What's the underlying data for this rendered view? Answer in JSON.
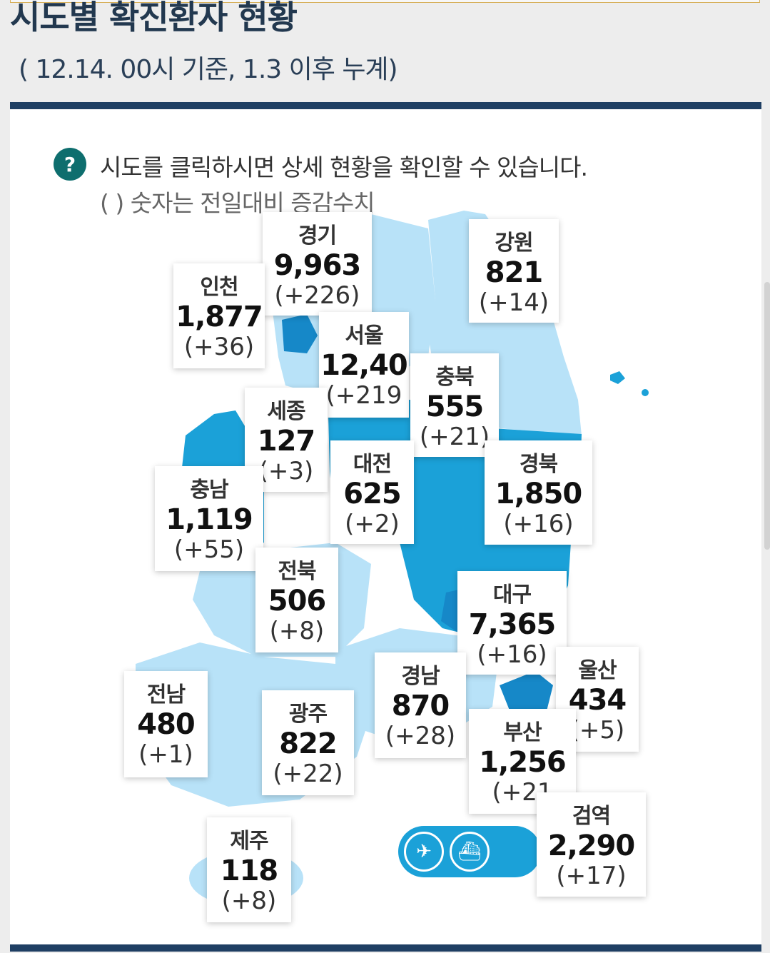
{
  "header": {
    "title": "시도별 확진환자 현황",
    "subtitle": "( 12.14. 00시 기준, 1.3 이후 누계)"
  },
  "help": {
    "icon": "question-icon",
    "icon_glyph": "?",
    "text": "시도를 클릭하시면 상세 현황을 확인할 수 있습니다.",
    "note": "( ) 숫자는 전일대비 증감수치"
  },
  "colors": {
    "header_bar": "#1f3f63",
    "map_light": "#b8e2f8",
    "map_medium": "#1ba1d8",
    "map_dark": "#1688c8",
    "help_icon": "#0e6e6e"
  },
  "regions": {
    "gyeonggi": {
      "name": "경기",
      "total": "9,963",
      "delta": "(+226)"
    },
    "gangwon": {
      "name": "강원",
      "total": "821",
      "delta": "(+14)"
    },
    "incheon": {
      "name": "인천",
      "total": "1,877",
      "delta": "(+36)"
    },
    "seoul": {
      "name": "서울",
      "total": "12,40",
      "delta": "(+219"
    },
    "chungbuk": {
      "name": "충북",
      "total": "555",
      "delta": "(+21)"
    },
    "sejong": {
      "name": "세종",
      "total": "127",
      "delta": "(+3)"
    },
    "daejeon": {
      "name": "대전",
      "total": "625",
      "delta": "(+2)"
    },
    "gyeongbuk": {
      "name": "경북",
      "total": "1,850",
      "delta": "(+16)"
    },
    "chungnam": {
      "name": "충남",
      "total": "1,119",
      "delta": "(+55)"
    },
    "jeonbuk": {
      "name": "전북",
      "total": "506",
      "delta": "(+8)"
    },
    "daegu": {
      "name": "대구",
      "total": "7,365",
      "delta": "(+16)"
    },
    "ulsan": {
      "name": "울산",
      "total": "434",
      "delta": "(+5)"
    },
    "gyeongnam": {
      "name": "경남",
      "total": "870",
      "delta": "(+28)"
    },
    "jeonnam": {
      "name": "전남",
      "total": "480",
      "delta": "(+1)"
    },
    "gwangju": {
      "name": "광주",
      "total": "822",
      "delta": "(+22)"
    },
    "busan": {
      "name": "부산",
      "total": "1,256",
      "delta": "(+21"
    },
    "quarantine": {
      "name": "검역",
      "total": "2,290",
      "delta": "(+17)"
    },
    "jeju": {
      "name": "제주",
      "total": "118",
      "delta": "(+8)"
    }
  },
  "transport": {
    "airplane_icon": "airplane-icon",
    "ship_icon": "ship-icon",
    "airplane_glyph": "✈",
    "ship_glyph": "⛴"
  }
}
